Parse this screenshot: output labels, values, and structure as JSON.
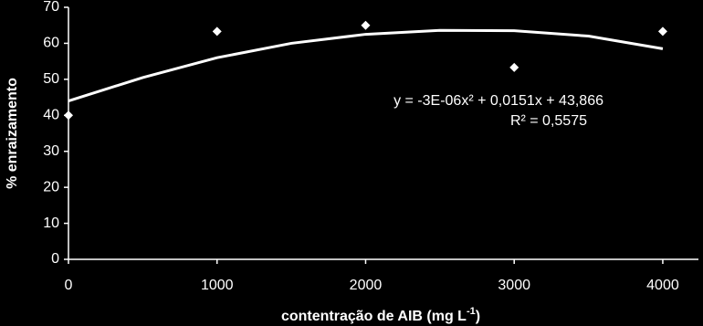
{
  "chart_data": {
    "type": "scatter",
    "xlabel": [
      "contentração de AIB (mg L",
      "-1",
      ")"
    ],
    "ylabel": "% enraizamento",
    "equation": "y = -3E-06x² + 0,0151x + 43,866",
    "r_squared": "R² = 0,5575",
    "xlim": [
      0,
      4240
    ],
    "ylim": [
      0,
      70
    ],
    "xticks": [
      0,
      1000,
      2000,
      3000,
      4000
    ],
    "yticks": [
      0,
      10,
      20,
      30,
      40,
      50,
      60,
      70
    ],
    "series": [
      {
        "color": "#ffffff",
        "marker": "diamond",
        "x": [
          0,
          1000,
          2000,
          3000,
          4000
        ],
        "values": [
          40,
          63.3,
          65,
          53.3,
          63.3
        ]
      },
      {
        "color": "#ffffff",
        "marker": "line",
        "x": [
          0,
          500,
          1000,
          1500,
          2000,
          2500,
          3000,
          3500,
          4000
        ],
        "values": [
          44,
          50.5,
          56,
          60,
          62.5,
          63.6,
          63.5,
          62,
          58.5
        ]
      }
    ]
  }
}
